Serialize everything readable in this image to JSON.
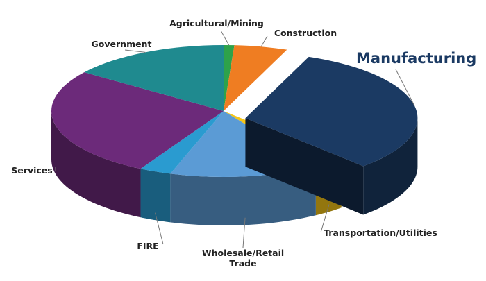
{
  "chart_data": {
    "type": "pie",
    "categories": [
      "Agricultural/Mining",
      "Construction",
      "Manufacturing",
      "Transportation/Utilities",
      "Wholesale/Retail Trade",
      "FIRE",
      "Services",
      "Government"
    ],
    "values": [
      1,
      5,
      32,
      3,
      14,
      3,
      27,
      15
    ],
    "colors": [
      "#2ea24a",
      "#ef7d22",
      "#1b3a63",
      "#f5c518",
      "#5b9bd5",
      "#2a9bd0",
      "#6c2a7a",
      "#1f8a8f"
    ],
    "explode": [
      false,
      false,
      true,
      false,
      false,
      false,
      false,
      false
    ],
    "three_d": true
  }
}
